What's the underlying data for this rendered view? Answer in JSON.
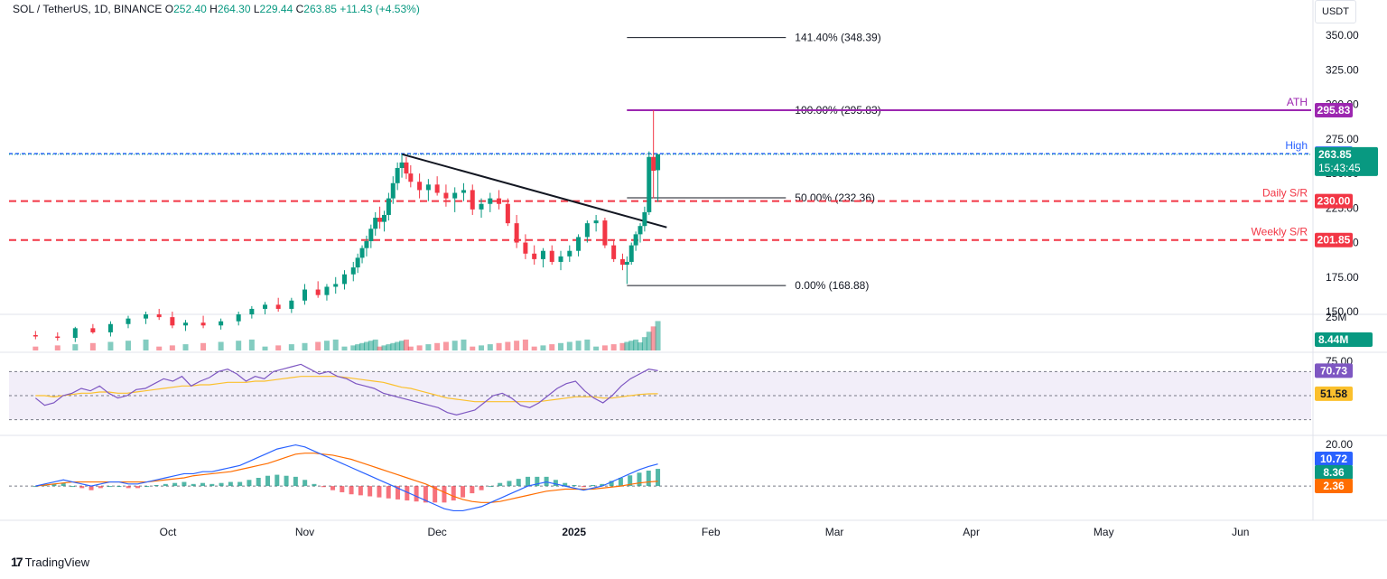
{
  "header": {
    "symbol": "SOL / TetherUS, 1D, BINANCE",
    "o_label": "O",
    "o_value": "252.40",
    "h_label": "H",
    "h_value": "264.30",
    "l_label": "L",
    "l_value": "229.44",
    "c_label": "C",
    "c_value": "263.85",
    "change": "+11.43 (+4.53%)"
  },
  "currency_unit": "USDT",
  "brand": "TradingView",
  "colors": {
    "up": "#089981",
    "down": "#f23645",
    "sr": "#f23645",
    "high": "#2962ff",
    "ath": "#9c27b0",
    "rsi": "#7e57c2",
    "rsi_ma": "#fbc02d",
    "macd": "#2962ff",
    "signal": "#ff6d00",
    "grid": "#f0f3fa"
  },
  "chart_data": {
    "type": "candlestick",
    "price_axis": {
      "ticks": [
        "350.00",
        "325.00",
        "300.00",
        "275.00",
        "250.00",
        "225.00",
        "200.00",
        "175.00",
        "150.00"
      ],
      "ylim": [
        150,
        356
      ]
    },
    "time_axis": {
      "ticks": [
        "Oct",
        "Nov",
        "Dec",
        "2025",
        "Feb",
        "Mar",
        "Apr",
        "May",
        "Jun"
      ],
      "xlim": [
        "2024-08-26",
        "2025-06-17"
      ]
    },
    "candles": [
      [
        "2024-09-01",
        133,
        136,
        130,
        132
      ],
      [
        "2024-09-06",
        132,
        135,
        129,
        131
      ],
      [
        "2024-09-10",
        131,
        139,
        128,
        138
      ],
      [
        "2024-09-14",
        138,
        141,
        134,
        135
      ],
      [
        "2024-09-18",
        135,
        143,
        132,
        141
      ],
      [
        "2024-09-22",
        141,
        147,
        138,
        145
      ],
      [
        "2024-09-26",
        145,
        150,
        141,
        148
      ],
      [
        "2024-09-29",
        148,
        152,
        144,
        146
      ],
      [
        "2024-10-02",
        146,
        150,
        138,
        140
      ],
      [
        "2024-10-05",
        140,
        144,
        136,
        142
      ],
      [
        "2024-10-09",
        142,
        147,
        138,
        140
      ],
      [
        "2024-10-13",
        140,
        145,
        137,
        143
      ],
      [
        "2024-10-17",
        143,
        150,
        140,
        148
      ],
      [
        "2024-10-20",
        148,
        154,
        145,
        152
      ],
      [
        "2024-10-23",
        152,
        157,
        148,
        155
      ],
      [
        "2024-10-26",
        155,
        160,
        150,
        152
      ],
      [
        "2024-10-29",
        152,
        160,
        149,
        158
      ],
      [
        "2024-11-01",
        158,
        170,
        155,
        166
      ],
      [
        "2024-11-04",
        166,
        172,
        160,
        162
      ],
      [
        "2024-11-06",
        162,
        170,
        158,
        168
      ],
      [
        "2024-11-08",
        168,
        175,
        163,
        170
      ],
      [
        "2024-11-10",
        170,
        180,
        166,
        177
      ],
      [
        "2024-11-12",
        177,
        186,
        172,
        182
      ],
      [
        "2024-11-13",
        182,
        192,
        178,
        189
      ],
      [
        "2024-11-14",
        189,
        198,
        185,
        196
      ],
      [
        "2024-11-15",
        196,
        205,
        190,
        201
      ],
      [
        "2024-11-16",
        201,
        213,
        196,
        210
      ],
      [
        "2024-11-17",
        210,
        222,
        205,
        218
      ],
      [
        "2024-11-18",
        218,
        226,
        210,
        215
      ],
      [
        "2024-11-19",
        215,
        223,
        208,
        220
      ],
      [
        "2024-11-20",
        220,
        236,
        216,
        232
      ],
      [
        "2024-11-21",
        232,
        248,
        228,
        243
      ],
      [
        "2024-11-22",
        243,
        258,
        238,
        254
      ],
      [
        "2024-11-23",
        254,
        264,
        247,
        258
      ],
      [
        "2024-11-24",
        258,
        262,
        246,
        250
      ],
      [
        "2024-11-25",
        250,
        256,
        240,
        244
      ],
      [
        "2024-11-27",
        244,
        250,
        232,
        238
      ],
      [
        "2024-11-29",
        238,
        246,
        230,
        242
      ],
      [
        "2024-12-01",
        242,
        248,
        234,
        236
      ],
      [
        "2024-12-03",
        236,
        242,
        226,
        232
      ],
      [
        "2024-12-05",
        232,
        240,
        222,
        236
      ],
      [
        "2024-12-07",
        236,
        243,
        230,
        238
      ],
      [
        "2024-12-09",
        238,
        242,
        220,
        224
      ],
      [
        "2024-12-11",
        224,
        232,
        218,
        228
      ],
      [
        "2024-12-13",
        228,
        236,
        222,
        232
      ],
      [
        "2024-12-15",
        232,
        238,
        224,
        228
      ],
      [
        "2024-12-17",
        228,
        232,
        212,
        214
      ],
      [
        "2024-12-19",
        214,
        220,
        196,
        200
      ],
      [
        "2024-12-21",
        200,
        206,
        188,
        192
      ],
      [
        "2024-12-23",
        192,
        198,
        184,
        188
      ],
      [
        "2024-12-25",
        188,
        196,
        182,
        194
      ],
      [
        "2024-12-27",
        194,
        198,
        184,
        186
      ],
      [
        "2024-12-29",
        186,
        194,
        180,
        190
      ],
      [
        "2024-12-31",
        190,
        198,
        186,
        194
      ],
      [
        "2025-01-02",
        194,
        206,
        190,
        204
      ],
      [
        "2025-01-04",
        204,
        216,
        200,
        214
      ],
      [
        "2025-01-06",
        214,
        220,
        208,
        216
      ],
      [
        "2025-01-08",
        216,
        218,
        196,
        198
      ],
      [
        "2025-01-10",
        198,
        202,
        186,
        188
      ],
      [
        "2025-01-12",
        188,
        192,
        180,
        184
      ],
      [
        "2025-01-13",
        184,
        190,
        170,
        186
      ],
      [
        "2025-01-14",
        186,
        200,
        184,
        198
      ],
      [
        "2025-01-15",
        198,
        208,
        194,
        206
      ],
      [
        "2025-01-16",
        206,
        214,
        200,
        212
      ],
      [
        "2025-01-17",
        212,
        226,
        208,
        222
      ],
      [
        "2025-01-18",
        222,
        266,
        220,
        262
      ],
      [
        "2025-01-19",
        262,
        295.83,
        232,
        252
      ],
      [
        "2025-01-20",
        252.4,
        264.3,
        229.44,
        263.85
      ]
    ],
    "levels": [
      {
        "label": "High",
        "value": 264.39,
        "price_label": "264.39",
        "style": "dashed",
        "color": "#2962ff"
      },
      {
        "label": "ATH",
        "value": 295.83,
        "price_label": "295.83",
        "style": "solid",
        "color": "#9c27b0"
      },
      {
        "label": "Daily S/R",
        "value": 230.0,
        "price_label": "230.00",
        "style": "dashed",
        "color": "#f23645"
      },
      {
        "label": "Weekly S/R",
        "value": 201.85,
        "price_label": "201.85",
        "style": "dashed",
        "color": "#f23645"
      }
    ],
    "current_price": {
      "label": "263.85",
      "countdown": "15:43:45"
    },
    "fibonacci": [
      {
        "label": "141.40% (348.39)",
        "value": 348.39
      },
      {
        "label": "100.00% (295.83)",
        "value": 295.83
      },
      {
        "label": "50.00% (232.36)",
        "value": 232.36
      },
      {
        "label": "0.00% (168.88)",
        "value": 168.88
      }
    ],
    "trendline": {
      "from": [
        "2024-11-23",
        264
      ],
      "to": [
        "2025-01-22",
        211
      ]
    },
    "volume": {
      "axis_label": "25M",
      "current": "8.44M",
      "max": 25
    },
    "rsi": {
      "axis_label": "75.00",
      "rsi_value": "70.73",
      "ma_value": "51.58",
      "upper": 70,
      "lower": 30,
      "mid": 50,
      "ylim": [
        20,
        80
      ],
      "values": [
        48,
        42,
        44,
        50,
        52,
        56,
        54,
        58,
        52,
        48,
        50,
        55,
        56,
        60,
        64,
        62,
        66,
        58,
        62,
        65,
        70,
        72,
        68,
        62,
        66,
        64,
        70,
        72,
        74,
        76,
        72,
        68,
        70,
        66,
        64,
        60,
        58,
        56,
        52,
        50,
        48,
        46,
        44,
        42,
        40,
        36,
        34,
        36,
        38,
        44,
        50,
        52,
        48,
        42,
        40,
        44,
        50,
        56,
        60,
        62,
        54,
        48,
        44,
        50,
        58,
        64,
        68,
        72,
        70.73
      ],
      "ma": [
        50,
        50,
        49,
        50,
        51,
        52,
        52,
        53,
        53,
        52,
        52,
        53,
        54,
        55,
        56,
        57,
        58,
        58,
        59,
        59,
        60,
        61,
        61,
        61,
        62,
        62,
        63,
        64,
        65,
        66,
        66,
        66,
        66,
        66,
        65,
        64,
        63,
        62,
        61,
        59,
        57,
        56,
        54,
        52,
        50,
        48,
        47,
        46,
        45,
        45,
        45,
        45,
        45,
        45,
        45,
        45,
        46,
        47,
        48,
        49,
        49,
        49,
        48,
        48,
        49,
        50,
        51,
        51.5,
        51.58
      ]
    },
    "macd": {
      "axis_label": "20.00",
      "macd_value": "10.72",
      "hist_value": "8.36",
      "signal_value": "2.36",
      "ylim": [
        -14,
        22
      ],
      "macd": [
        0,
        1,
        2,
        3,
        2,
        1,
        0,
        1,
        2,
        2,
        1,
        1,
        2,
        3,
        4,
        5,
        6,
        6,
        7,
        7,
        8,
        9,
        10,
        12,
        14,
        16,
        18,
        19,
        20,
        19,
        17,
        15,
        13,
        11,
        9,
        7,
        5,
        3,
        1,
        -1,
        -3,
        -5,
        -7,
        -9,
        -11,
        -12,
        -12,
        -11,
        -10,
        -8,
        -6,
        -4,
        -2,
        0,
        1,
        2,
        1,
        0,
        -1,
        -2,
        -1,
        0,
        2,
        4,
        6,
        8,
        9.5,
        10.72
      ],
      "signal": [
        0,
        0.5,
        1,
        1.5,
        2,
        2,
        2,
        2,
        2,
        2,
        2,
        2,
        2,
        2.5,
        3,
        3.5,
        4,
        5,
        5.5,
        6,
        6.5,
        7,
        8,
        9,
        10,
        11,
        12.5,
        14,
        15.5,
        16,
        16,
        15.5,
        15,
        14,
        13,
        11.5,
        10,
        8.5,
        7,
        5.5,
        4,
        2.5,
        1,
        -1,
        -3,
        -5,
        -6.5,
        -7.5,
        -8,
        -8,
        -7.5,
        -6.5,
        -5.5,
        -4.5,
        -3.5,
        -2.5,
        -2,
        -1.5,
        -1.5,
        -1.5,
        -1.5,
        -1,
        -0.5,
        0,
        0.8,
        1.5,
        2,
        2.36
      ]
    }
  }
}
